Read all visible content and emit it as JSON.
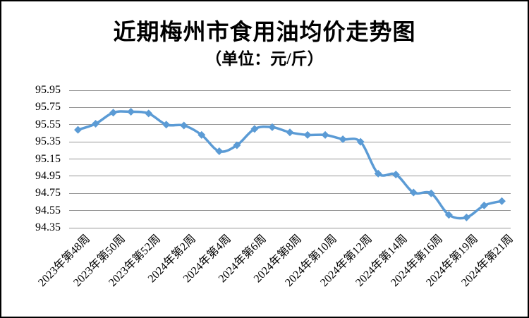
{
  "window": {
    "background_color": "#ffffff",
    "border_color": "#000000"
  },
  "chart_data": {
    "type": "line",
    "title": "近期梅州市食用油均价走势图",
    "subtitle": "（单位：元/斤）",
    "unit": "元/斤",
    "series_name": "食用油均价",
    "n_points": 25,
    "values": [
      95.49,
      95.56,
      95.69,
      95.7,
      95.68,
      95.55,
      95.54,
      95.43,
      95.24,
      95.31,
      95.5,
      95.52,
      95.46,
      95.43,
      95.43,
      95.38,
      95.35,
      94.98,
      94.97,
      94.76,
      94.75,
      94.5,
      94.47,
      94.61,
      94.66
    ],
    "x_labels": [
      "2023年第48周",
      "2023年第50周",
      "2023年第52周",
      "2024年第2周",
      "2024年第4周",
      "2024年第6周",
      "2024年第8周",
      "2024年第10周",
      "2024年第12周",
      "2024年第14周",
      "2024年第16周",
      "2024年第19周",
      "2024年第21周"
    ],
    "x_label_indices": [
      0,
      2,
      4,
      6,
      8,
      10,
      12,
      14,
      16,
      18,
      20,
      22,
      24
    ],
    "y_ticks": [
      "95.95",
      "95.75",
      "95.55",
      "95.35",
      "95.15",
      "94.95",
      "94.75",
      "94.55",
      "94.35"
    ],
    "ylim": [
      94.35,
      95.95
    ],
    "grid": "horizontal",
    "legend": "none",
    "marker": "diamond",
    "line_smoothed": true,
    "line_color": "#5B9BD5",
    "gridline_color": "#969696",
    "text_color": "#000000"
  }
}
